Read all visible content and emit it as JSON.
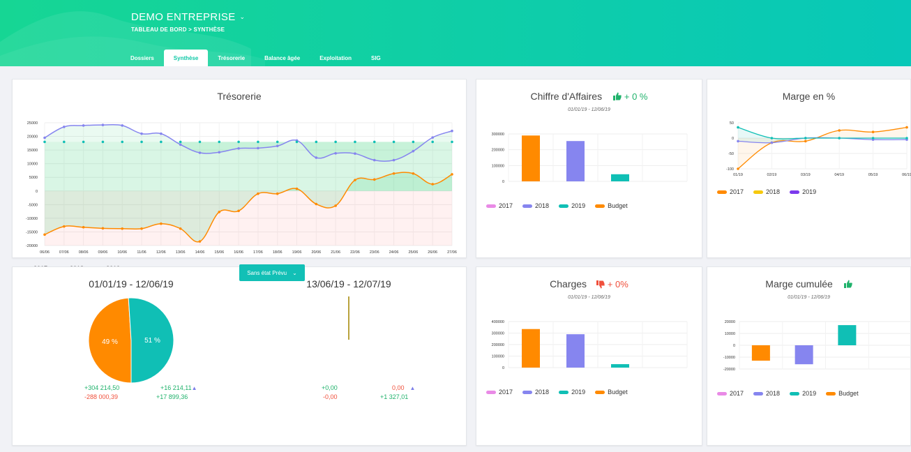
{
  "header": {
    "company": "DEMO ENTREPRISE",
    "breadcrumb": "TABLEAU DE BORD >  SYNTHÈSE",
    "tabs": [
      "Dossiers",
      "Synthèse",
      "Trésorerie",
      "Balance âgée",
      "Exploitation",
      "SIG"
    ],
    "active_tab": "Synthèse"
  },
  "colors": {
    "y2017": "#ff8a00",
    "y2018": "#8685ef",
    "y2019": "#10bfb5",
    "budget": "#ff8a00",
    "pink2017": "#e98ae6",
    "yellow2018": "#f6c90e",
    "purple2019": "#7c3aed"
  },
  "tresorerie": {
    "title": "Trésorerie",
    "legend": [
      "2017",
      "2018",
      "2019"
    ],
    "chart_data": {
      "type": "line",
      "categories": [
        "06/06",
        "07/06",
        "08/06",
        "09/06",
        "10/06",
        "11/06",
        "12/06",
        "13/06",
        "14/06",
        "15/06",
        "16/06",
        "17/06",
        "18/06",
        "19/06",
        "20/06",
        "21/06",
        "22/06",
        "23/06",
        "24/06",
        "25/06",
        "26/06",
        "27/06"
      ],
      "series": [
        {
          "name": "2018",
          "values": [
            19500,
            23500,
            24000,
            24200,
            24000,
            21000,
            21000,
            17000,
            14000,
            14200,
            15600,
            15700,
            16500,
            18500,
            12200,
            13800,
            13700,
            11300,
            11300,
            14600,
            19600,
            22000
          ]
        },
        {
          "name": "2019",
          "values": [
            18000,
            18000,
            18000,
            18000,
            18000,
            18000,
            18000,
            18000,
            18000,
            18000,
            18000,
            18000,
            18000,
            18000,
            18000,
            18000,
            18000,
            18000,
            18000,
            18000,
            18000,
            18000
          ]
        },
        {
          "name": "2017",
          "values": [
            -16000,
            -13000,
            -13300,
            -13700,
            -13800,
            -13800,
            -12000,
            -13800,
            -18500,
            -7700,
            -7300,
            -1000,
            -1000,
            800,
            -4800,
            -5400,
            4000,
            4200,
            6400,
            6400,
            2500,
            6100
          ]
        }
      ],
      "ylim": [
        -20000,
        25000
      ],
      "yticks": [
        -20000,
        -15000,
        -10000,
        -5000,
        0,
        5000,
        10000,
        15000,
        20000,
        25000
      ],
      "grid": true
    }
  },
  "ca": {
    "title": "Chiffre d'Affaires",
    "delta": "+ 0 %",
    "period": "01/01/19 - 12/06/19",
    "legend": [
      "2017",
      "2018",
      "2019",
      "Budget"
    ],
    "chart_data": {
      "type": "bar",
      "categories": [
        "Budget",
        "2018",
        "2019"
      ],
      "values": [
        290000,
        255000,
        45000
      ],
      "ylim": [
        0,
        300000
      ],
      "yticks": [
        0,
        100000,
        200000,
        300000
      ]
    }
  },
  "marge_pct": {
    "title": "Marge en %",
    "legend": [
      "2017",
      "2018",
      "2019"
    ],
    "chart_data": {
      "type": "line",
      "categories": [
        "01/19",
        "02/19",
        "03/19",
        "04/19",
        "05/19",
        "06/19"
      ],
      "series": [
        {
          "name": "2017",
          "values": [
            -100,
            -15,
            -10,
            25,
            20,
            35
          ]
        },
        {
          "name": "2018",
          "values": [
            -10,
            -15,
            0,
            0,
            -5,
            -5
          ]
        },
        {
          "name": "2019",
          "values": [
            35,
            0,
            0,
            0,
            0,
            0
          ]
        }
      ],
      "ylim": [
        -100,
        50
      ],
      "yticks": [
        -100,
        -50,
        0,
        50
      ]
    }
  },
  "pie_block": {
    "button": "Sans état Prévu",
    "legend": [
      "2017",
      "2018",
      "2019"
    ],
    "left_period": "01/01/19 - 12/06/19",
    "right_period": "13/06/19 - 12/07/19",
    "chart_data": {
      "type": "pie",
      "labels": [
        "49 %",
        "51 %"
      ],
      "values": [
        49,
        51
      ]
    },
    "left_values": {
      "a": "+304 214,50",
      "b": "-288 000,39",
      "c": "+16 214,11",
      "d": "+17 899,36"
    },
    "right_values": {
      "a": "+0,00",
      "b": "-0,00",
      "c": "0,00",
      "d": "+1 327,01"
    }
  },
  "charges": {
    "title": "Charges",
    "delta": "+ 0%",
    "period": "01/01/19 - 12/06/19",
    "legend": [
      "2017",
      "2018",
      "2019",
      "Budget"
    ],
    "chart_data": {
      "type": "bar",
      "categories": [
        "Budget",
        "2018",
        "2019"
      ],
      "values": [
        335000,
        290000,
        30000
      ],
      "ylim": [
        0,
        400000
      ],
      "yticks": [
        0,
        100000,
        200000,
        300000,
        400000
      ]
    }
  },
  "marge_cumulee": {
    "title": "Marge cumulée",
    "period": "01/01/19 - 12/06/19",
    "legend": [
      "2017",
      "2018",
      "2019",
      "Budget"
    ],
    "chart_data": {
      "type": "bar",
      "categories": [
        "Budget",
        "2018",
        "2019"
      ],
      "values": [
        -13000,
        -16000,
        17000
      ],
      "ylim": [
        -20000,
        20000
      ],
      "yticks": [
        -20000,
        -10000,
        0,
        10000,
        20000
      ]
    }
  }
}
